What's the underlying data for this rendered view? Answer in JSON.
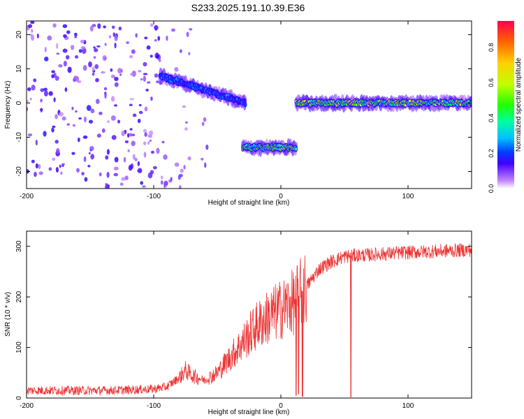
{
  "title": "S233.2025.191.10.39.E36",
  "chart_data": [
    {
      "type": "heatmap",
      "xlabel": "Height of straight line (km)",
      "ylabel": "Frequency (Hz)",
      "xlim": [
        -200,
        150
      ],
      "ylim": [
        -25,
        24
      ],
      "xticks": [
        -200,
        -100,
        0,
        100
      ],
      "yticks": [
        -20,
        -10,
        0,
        10,
        20
      ],
      "colorbar": {
        "label": "Normalized spectral amplitude",
        "range": [
          0,
          0.95
        ],
        "ticks": [
          "0.0",
          "0.2",
          "0.4",
          "0.6",
          "0.8"
        ],
        "colors": [
          "#ffffff",
          "#c080ff",
          "#4000ff",
          "#0040ff",
          "#00c0ff",
          "#00ffa0",
          "#20ff00",
          "#c0ff00",
          "#ffd000",
          "#ff6000",
          "#ff0040"
        ]
      },
      "regions": [
        {
          "x_range": [
            -200,
            -95
          ],
          "y_range": [
            -25,
            24
          ],
          "amplitude": 0.08,
          "kind": "noise"
        },
        {
          "x_range": [
            -95,
            -70
          ],
          "y_range": [
            -25,
            24
          ],
          "amplitude": 0.04,
          "kind": "noise"
        },
        {
          "x_range": [
            -62,
            -58
          ],
          "y_range": [
            -25,
            24
          ],
          "amplitude": 0.05,
          "kind": "noise"
        },
        {
          "x_range": [
            -95,
            -28
          ],
          "y_center": [
            8,
            0
          ],
          "amplitude": 0.3,
          "kind": "signal"
        },
        {
          "x_range": [
            -30,
            12
          ],
          "y_center": [
            -13,
            -13
          ],
          "amplitude": 0.6,
          "kind": "signal"
        },
        {
          "x_range": [
            12,
            150
          ],
          "y_center": [
            0,
            0
          ],
          "amplitude": 0.65,
          "kind": "signal"
        }
      ]
    },
    {
      "type": "line",
      "xlabel": "Height of straight line (km)",
      "ylabel": "SNR (10 * v/v)",
      "xlim": [
        -200,
        150
      ],
      "ylim": [
        0,
        330
      ],
      "xticks": [
        -200,
        -100,
        0,
        100
      ],
      "yticks": [
        0,
        100,
        200,
        300
      ],
      "color": "#ee3333",
      "series": [
        {
          "x": [
            -200,
            -180,
            -160,
            -140,
            -120,
            -100,
            -90,
            -80,
            -75,
            -70,
            -60,
            -50,
            -40,
            -30,
            -20,
            -10,
            0,
            10,
            20,
            30,
            40,
            50,
            60,
            70,
            80,
            100,
            120,
            140,
            150
          ],
          "y": [
            15,
            15,
            15,
            15,
            16,
            18,
            22,
            40,
            55,
            45,
            35,
            50,
            80,
            110,
            140,
            160,
            175,
            190,
            220,
            255,
            270,
            280,
            282,
            283,
            285,
            288,
            290,
            292,
            293
          ]
        }
      ],
      "dips": [
        {
          "x": 12,
          "y": 5
        },
        {
          "x": 14,
          "y": 8
        },
        {
          "x": 17,
          "y": 3
        },
        {
          "x": 55,
          "y": 2
        }
      ]
    }
  ]
}
